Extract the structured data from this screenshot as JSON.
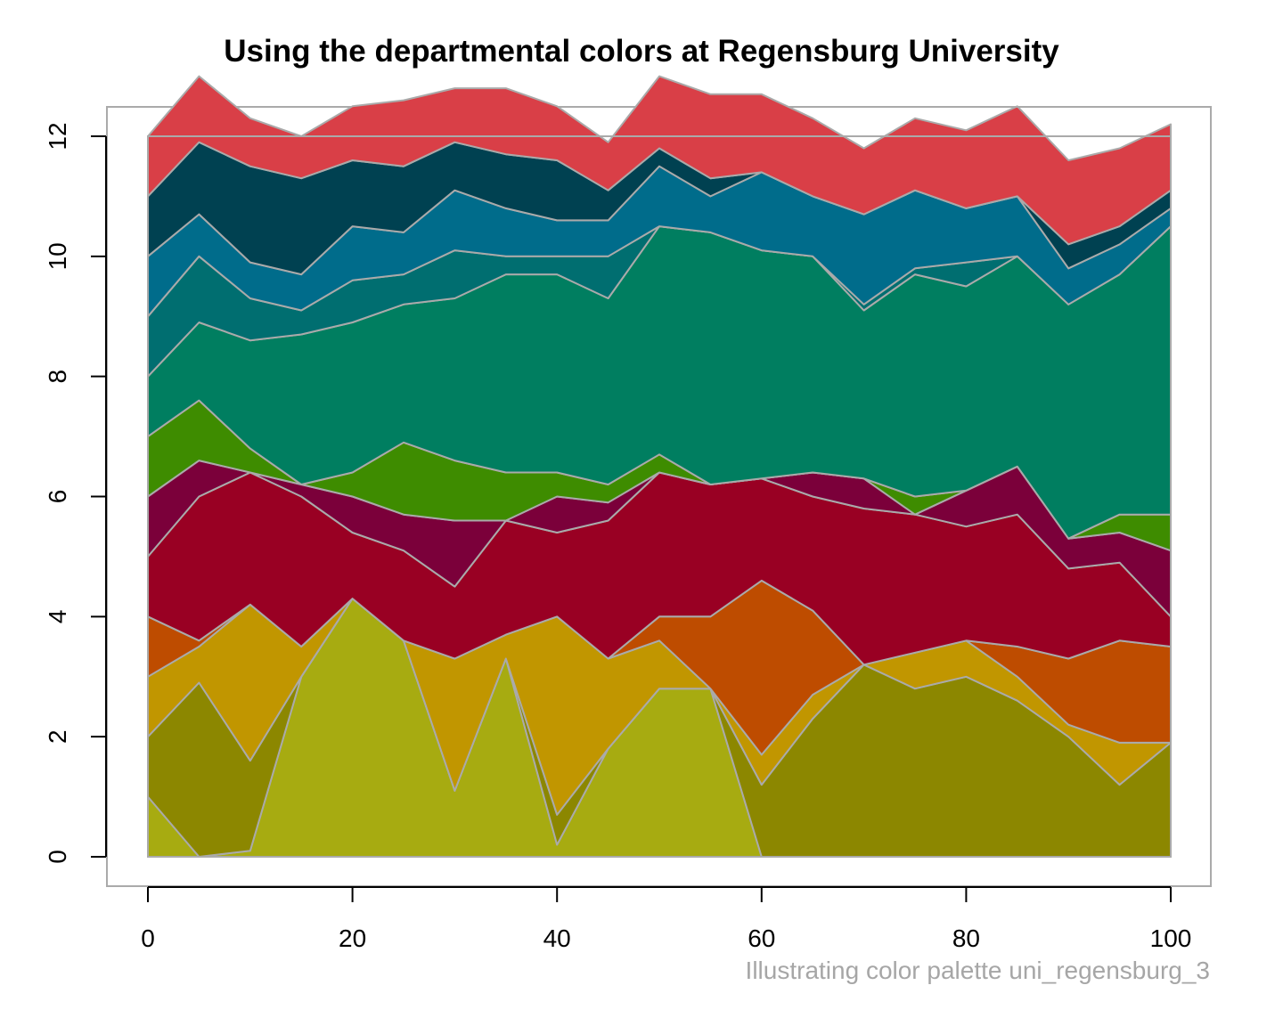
{
  "chart_data": {
    "type": "area",
    "stacked": true,
    "title": "Using the departmental colors at Regensburg University",
    "caption": "Illustrating color palette uni_regensburg_3",
    "xlabel": "",
    "ylabel": "",
    "xlim": [
      0,
      100
    ],
    "ylim": [
      0,
      12
    ],
    "x_ticks": [
      "0",
      "20",
      "40",
      "60",
      "80",
      "100"
    ],
    "y_ticks": [
      "0",
      "2",
      "4",
      "6",
      "8",
      "10",
      "12"
    ],
    "grid": false,
    "legend": "none",
    "line_color": "#aaaaaa",
    "x": [
      0,
      5,
      10,
      15,
      20,
      25,
      30,
      35,
      40,
      45,
      50,
      55,
      60,
      65,
      70,
      75,
      80,
      85,
      90,
      95,
      100
    ],
    "series": [
      {
        "color": "#a7ab11",
        "values": [
          1.0,
          0.0,
          0.1,
          3.0,
          4.3,
          3.6,
          1.1,
          3.3,
          0.2,
          1.8,
          2.8,
          2.8,
          0.0,
          0.0,
          0.0,
          0.0,
          0.0,
          0.0,
          0.0,
          0.0,
          0.0
        ]
      },
      {
        "color": "#8c8700",
        "values": [
          1.0,
          2.9,
          1.5,
          0.0,
          0.0,
          0.0,
          0.0,
          0.0,
          0.5,
          0.0,
          0.0,
          0.0,
          1.2,
          2.3,
          3.2,
          2.8,
          3.0,
          2.6,
          2.0,
          1.2,
          1.9
        ]
      },
      {
        "color": "#c19600",
        "values": [
          1.0,
          0.6,
          2.6,
          0.5,
          0.0,
          0.0,
          2.2,
          0.4,
          3.3,
          1.5,
          0.8,
          0.0,
          0.5,
          0.4,
          0.0,
          0.6,
          0.6,
          0.4,
          0.2,
          0.7,
          0.0
        ]
      },
      {
        "color": "#be4c00",
        "values": [
          1.0,
          0.1,
          0.0,
          0.0,
          0.0,
          0.0,
          0.0,
          0.0,
          0.0,
          0.0,
          0.4,
          1.2,
          2.9,
          1.4,
          0.0,
          0.0,
          0.0,
          0.5,
          1.1,
          1.7,
          1.6
        ]
      },
      {
        "color": "#990023",
        "values": [
          1.0,
          2.4,
          2.2,
          2.5,
          1.1,
          1.5,
          1.2,
          1.9,
          1.4,
          2.3,
          2.4,
          2.2,
          1.7,
          1.9,
          2.6,
          2.3,
          1.9,
          2.2,
          1.5,
          1.3,
          0.5
        ]
      },
      {
        "color": "#7b003a",
        "values": [
          1.0,
          0.6,
          0.0,
          0.2,
          0.6,
          0.6,
          1.1,
          0.0,
          0.6,
          0.3,
          0.0,
          0.0,
          0.0,
          0.4,
          0.5,
          0.0,
          0.6,
          0.8,
          0.5,
          0.5,
          1.1
        ]
      },
      {
        "color": "#3e8c00",
        "values": [
          1.0,
          1.0,
          0.4,
          0.0,
          0.4,
          1.2,
          1.0,
          0.8,
          0.4,
          0.3,
          0.3,
          0.0,
          0.0,
          0.0,
          0.0,
          0.3,
          0.0,
          0.0,
          0.0,
          0.3,
          0.6
        ]
      },
      {
        "color": "#007e60",
        "values": [
          1.0,
          1.3,
          1.8,
          2.5,
          2.5,
          2.3,
          2.7,
          3.3,
          3.3,
          3.1,
          3.8,
          4.2,
          3.8,
          3.6,
          2.8,
          3.7,
          3.4,
          3.5,
          3.9,
          4.0,
          4.8
        ]
      },
      {
        "color": "#006e70",
        "values": [
          1.0,
          1.1,
          0.7,
          0.4,
          0.7,
          0.5,
          0.8,
          0.3,
          0.3,
          0.7,
          0.0,
          0.0,
          0.0,
          0.0,
          0.1,
          0.1,
          0.4,
          0.0,
          0.0,
          0.0,
          0.0
        ]
      },
      {
        "color": "#006c8b",
        "values": [
          1.0,
          0.7,
          0.6,
          0.6,
          0.9,
          0.7,
          1.0,
          0.8,
          0.6,
          0.6,
          1.0,
          0.6,
          1.3,
          1.0,
          1.5,
          1.3,
          0.9,
          1.0,
          0.6,
          0.5,
          0.3
        ]
      },
      {
        "color": "#004151",
        "values": [
          1.0,
          1.2,
          1.6,
          1.6,
          1.1,
          1.1,
          0.8,
          0.9,
          1.0,
          0.5,
          0.3,
          0.3,
          0.0,
          0.0,
          0.0,
          0.0,
          0.0,
          0.0,
          0.4,
          0.3,
          0.3
        ]
      },
      {
        "color": "#d93f47",
        "values": [
          1.0,
          1.1,
          0.8,
          0.7,
          0.9,
          1.1,
          0.9,
          1.1,
          0.9,
          0.8,
          1.2,
          1.4,
          1.3,
          1.3,
          1.1,
          1.2,
          1.3,
          1.5,
          1.4,
          1.3,
          1.1
        ]
      }
    ]
  }
}
